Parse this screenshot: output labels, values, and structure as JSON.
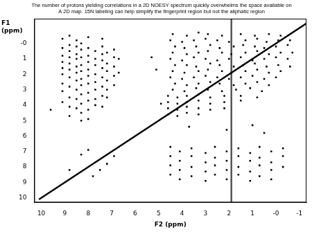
{
  "chart_data": {
    "type": "scatter",
    "title": [
      "The number of protons yielding correlations in a 2D NOESY spectrum quickly overwhelms the space available on",
      "A 2D map. 15N labeling can help simplify the fingerprint region but not the aliphatic region"
    ],
    "x_label": "F2 (ppm)",
    "y_label": [
      "F1",
      "(ppm)"
    ],
    "xlim": [
      10.3,
      -1.3
    ],
    "ylim": [
      10.3,
      -1.6
    ],
    "xticks": [
      10,
      9,
      8,
      7,
      6,
      5,
      4,
      3,
      2,
      1,
      {
        "value": 0,
        "label": "-0"
      },
      -1
    ],
    "yticks": [
      {
        "value": 0,
        "label": "-0"
      },
      1,
      2,
      3,
      4,
      5,
      6,
      7,
      8,
      9,
      10
    ],
    "grid": false,
    "series": [
      {
        "type": "scatter",
        "marker": "square",
        "color": "#000000",
        "points": [
          [
            9.1,
            -0.3
          ],
          [
            9.1,
            0.3
          ],
          [
            9.1,
            0.8
          ],
          [
            9.1,
            1.2
          ],
          [
            9.1,
            1.6
          ],
          [
            9.1,
            2.0
          ],
          [
            9.1,
            2.6
          ],
          [
            9.1,
            3.1
          ],
          [
            9.1,
            3.8
          ],
          [
            8.8,
            -0.5
          ],
          [
            8.8,
            0.1
          ],
          [
            8.8,
            0.5
          ],
          [
            8.8,
            0.9
          ],
          [
            8.8,
            1.3
          ],
          [
            8.8,
            1.7
          ],
          [
            8.8,
            2.2
          ],
          [
            8.8,
            2.8
          ],
          [
            8.8,
            3.5
          ],
          [
            8.8,
            4.1
          ],
          [
            8.8,
            4.7
          ],
          [
            8.5,
            -0.2
          ],
          [
            8.5,
            0.2
          ],
          [
            8.5,
            0.7
          ],
          [
            8.5,
            1.0
          ],
          [
            8.5,
            1.5
          ],
          [
            8.5,
            1.9
          ],
          [
            8.5,
            2.4
          ],
          [
            8.5,
            3.0
          ],
          [
            8.5,
            3.6
          ],
          [
            8.5,
            4.2
          ],
          [
            8.3,
            0.0
          ],
          [
            8.3,
            0.4
          ],
          [
            8.3,
            0.9
          ],
          [
            8.3,
            1.4
          ],
          [
            8.3,
            1.8
          ],
          [
            8.3,
            2.3
          ],
          [
            8.3,
            2.7
          ],
          [
            8.3,
            3.3
          ],
          [
            8.3,
            3.9
          ],
          [
            8.3,
            4.5
          ],
          [
            8.3,
            5.0
          ],
          [
            8.0,
            -0.4
          ],
          [
            8.0,
            0.3
          ],
          [
            8.0,
            0.8
          ],
          [
            8.0,
            1.2
          ],
          [
            8.0,
            1.7
          ],
          [
            8.0,
            2.1
          ],
          [
            8.0,
            2.6
          ],
          [
            8.0,
            3.2
          ],
          [
            8.0,
            3.7
          ],
          [
            8.0,
            4.3
          ],
          [
            8.0,
            4.9
          ],
          [
            7.7,
            0.5
          ],
          [
            7.7,
            1.0
          ],
          [
            7.7,
            1.4
          ],
          [
            7.7,
            2.0
          ],
          [
            7.7,
            2.5
          ],
          [
            7.7,
            3.0
          ],
          [
            7.7,
            3.6
          ],
          [
            7.7,
            4.0
          ],
          [
            7.4,
            -0.3
          ],
          [
            7.4,
            0.2
          ],
          [
            7.4,
            0.7
          ],
          [
            7.4,
            1.1
          ],
          [
            7.4,
            1.6
          ],
          [
            7.4,
            2.2
          ],
          [
            7.4,
            2.8
          ],
          [
            7.4,
            3.4
          ],
          [
            7.4,
            4.1
          ],
          [
            7.2,
            0.6
          ],
          [
            7.2,
            1.3
          ],
          [
            7.2,
            1.8
          ],
          [
            7.2,
            2.4
          ],
          [
            7.2,
            3.0
          ],
          [
            7.2,
            3.5
          ],
          [
            6.9,
            0.4
          ],
          [
            6.9,
            0.9
          ],
          [
            6.9,
            1.5
          ],
          [
            6.9,
            2.1
          ],
          [
            6.9,
            2.7
          ],
          [
            6.7,
            1.0
          ],
          [
            6.7,
            1.9
          ],
          [
            9.6,
            4.3
          ],
          [
            5.3,
            0.9
          ],
          [
            5.1,
            1.7
          ],
          [
            4.9,
            3.9
          ],
          [
            4.4,
            -0.6
          ],
          [
            3.8,
            -0.5
          ],
          [
            3.3,
            -0.7
          ],
          [
            2.9,
            -0.6
          ],
          [
            2.3,
            -0.5
          ],
          [
            1.5,
            -0.6
          ],
          [
            0.9,
            -0.5
          ],
          [
            0.3,
            -0.6
          ],
          [
            -0.2,
            -0.5
          ],
          [
            4.5,
            -0.2
          ],
          [
            4.0,
            -0.1
          ],
          [
            3.5,
            -0.2
          ],
          [
            3.0,
            -0.3
          ],
          [
            2.5,
            -0.2
          ],
          [
            2.0,
            -0.1
          ],
          [
            1.3,
            -0.2
          ],
          [
            0.8,
            -0.3
          ],
          [
            0.4,
            -0.1
          ],
          [
            -0.1,
            -0.2
          ],
          [
            -0.6,
            -0.2
          ],
          [
            4.3,
            0.2
          ],
          [
            3.9,
            0.3
          ],
          [
            3.4,
            0.2
          ],
          [
            2.8,
            0.1
          ],
          [
            2.4,
            0.3
          ],
          [
            1.8,
            0.2
          ],
          [
            1.4,
            0.1
          ],
          [
            0.9,
            0.2
          ],
          [
            0.5,
            0.3
          ],
          [
            0.0,
            0.2
          ],
          [
            -0.5,
            0.1
          ],
          [
            4.4,
            0.6
          ],
          [
            3.8,
            0.7
          ],
          [
            3.3,
            0.6
          ],
          [
            2.9,
            0.5
          ],
          [
            2.3,
            0.6
          ],
          [
            1.9,
            0.7
          ],
          [
            1.3,
            0.6
          ],
          [
            0.8,
            0.5
          ],
          [
            0.3,
            0.7
          ],
          [
            -0.2,
            0.6
          ],
          [
            -0.7,
            0.6
          ],
          [
            4.5,
            1.0
          ],
          [
            4.0,
            1.1
          ],
          [
            3.5,
            0.9
          ],
          [
            3.0,
            1.0
          ],
          [
            2.5,
            1.1
          ],
          [
            2.0,
            1.0
          ],
          [
            1.5,
            0.9
          ],
          [
            1.0,
            1.1
          ],
          [
            0.5,
            1.0
          ],
          [
            0.0,
            0.9
          ],
          [
            -0.5,
            1.0
          ],
          [
            4.3,
            1.4
          ],
          [
            3.8,
            1.4
          ],
          [
            3.4,
            1.5
          ],
          [
            2.8,
            1.3
          ],
          [
            2.4,
            1.4
          ],
          [
            1.8,
            1.5
          ],
          [
            1.4,
            1.4
          ],
          [
            0.9,
            1.3
          ],
          [
            0.4,
            1.5
          ],
          [
            -0.1,
            1.4
          ],
          [
            -0.6,
            1.5
          ],
          [
            4.4,
            1.8
          ],
          [
            3.9,
            1.9
          ],
          [
            3.3,
            1.8
          ],
          [
            2.9,
            1.7
          ],
          [
            2.3,
            1.8
          ],
          [
            1.9,
            1.9
          ],
          [
            1.3,
            1.8
          ],
          [
            0.8,
            1.7
          ],
          [
            0.3,
            1.9
          ],
          [
            -0.2,
            1.8
          ],
          [
            4.5,
            2.2
          ],
          [
            4.0,
            2.3
          ],
          [
            3.5,
            2.2
          ],
          [
            3.0,
            2.1
          ],
          [
            2.5,
            2.2
          ],
          [
            2.0,
            2.3
          ],
          [
            1.5,
            2.2
          ],
          [
            1.0,
            2.1
          ],
          [
            0.5,
            2.3
          ],
          [
            0.0,
            2.2
          ],
          [
            4.3,
            2.6
          ],
          [
            3.8,
            2.7
          ],
          [
            3.3,
            2.6
          ],
          [
            2.8,
            2.5
          ],
          [
            2.4,
            2.6
          ],
          [
            1.8,
            2.7
          ],
          [
            1.3,
            2.6
          ],
          [
            0.8,
            2.5
          ],
          [
            0.3,
            2.7
          ],
          [
            4.4,
            3.0
          ],
          [
            3.9,
            3.1
          ],
          [
            3.4,
            2.9
          ],
          [
            2.9,
            3.0
          ],
          [
            2.3,
            3.1
          ],
          [
            1.7,
            3.0
          ],
          [
            1.1,
            2.9
          ],
          [
            0.6,
            3.1
          ],
          [
            4.6,
            3.4
          ],
          [
            4.2,
            3.5
          ],
          [
            3.8,
            3.4
          ],
          [
            3.3,
            3.3
          ],
          [
            2.8,
            3.5
          ],
          [
            2.2,
            3.4
          ],
          [
            1.5,
            3.4
          ],
          [
            0.8,
            3.5
          ],
          [
            4.6,
            3.8
          ],
          [
            4.2,
            3.9
          ],
          [
            3.8,
            3.8
          ],
          [
            3.3,
            3.7
          ],
          [
            2.8,
            3.9
          ],
          [
            2.2,
            3.8
          ],
          [
            1.5,
            3.7
          ],
          [
            4.6,
            4.2
          ],
          [
            4.2,
            4.3
          ],
          [
            3.8,
            4.1
          ],
          [
            3.3,
            4.2
          ],
          [
            2.8,
            4.3
          ],
          [
            2.2,
            4.2
          ],
          [
            4.6,
            4.6
          ],
          [
            4.2,
            4.7
          ],
          [
            3.8,
            4.5
          ],
          [
            3.3,
            4.6
          ],
          [
            3.7,
            5.4
          ],
          [
            2.1,
            5.6
          ],
          [
            1.0,
            5.3
          ],
          [
            0.5,
            5.8
          ],
          [
            8.3,
            7.2
          ],
          [
            7.5,
            8.2
          ],
          [
            8.0,
            6.9
          ],
          [
            7.2,
            7.8
          ],
          [
            6.9,
            7.3
          ],
          [
            8.8,
            8.2
          ],
          [
            7.8,
            8.6
          ],
          [
            4.5,
            6.7
          ],
          [
            3.6,
            6.8
          ],
          [
            2.6,
            6.7
          ],
          [
            1.6,
            6.8
          ],
          [
            0.7,
            6.7
          ],
          [
            -0.3,
            6.8
          ],
          [
            4.1,
            7.0
          ],
          [
            3.0,
            7.1
          ],
          [
            2.1,
            7.0
          ],
          [
            1.1,
            7.1
          ],
          [
            0.2,
            7.0
          ],
          [
            4.5,
            7.3
          ],
          [
            3.6,
            7.3
          ],
          [
            2.6,
            7.4
          ],
          [
            1.6,
            7.3
          ],
          [
            0.7,
            7.4
          ],
          [
            -0.3,
            7.3
          ],
          [
            4.1,
            7.6
          ],
          [
            3.0,
            7.7
          ],
          [
            2.1,
            7.6
          ],
          [
            1.1,
            7.6
          ],
          [
            0.2,
            7.7
          ],
          [
            4.5,
            7.9
          ],
          [
            3.6,
            8.0
          ],
          [
            2.6,
            7.9
          ],
          [
            1.6,
            8.0
          ],
          [
            0.7,
            7.9
          ],
          [
            -0.3,
            8.0
          ],
          [
            4.1,
            8.2
          ],
          [
            3.0,
            8.3
          ],
          [
            2.1,
            8.2
          ],
          [
            1.1,
            8.3
          ],
          [
            0.2,
            8.2
          ],
          [
            4.5,
            8.5
          ],
          [
            3.6,
            8.6
          ],
          [
            2.6,
            8.5
          ],
          [
            1.6,
            8.5
          ],
          [
            0.7,
            8.6
          ],
          [
            4.1,
            8.8
          ],
          [
            3.0,
            8.9
          ],
          [
            2.1,
            8.8
          ],
          [
            1.1,
            8.9
          ],
          [
            0.2,
            8.8
          ]
        ]
      },
      {
        "type": "line",
        "line_style": "solid",
        "color": "#000000",
        "points": [
          [
            10.1,
            10.1
          ],
          [
            -1.3,
            -1.3
          ]
        ]
      },
      {
        "type": "line",
        "line_style": "solid",
        "color": "#555555",
        "points": [
          [
            1.9,
            10.3
          ],
          [
            1.9,
            -1.6
          ]
        ]
      }
    ]
  }
}
